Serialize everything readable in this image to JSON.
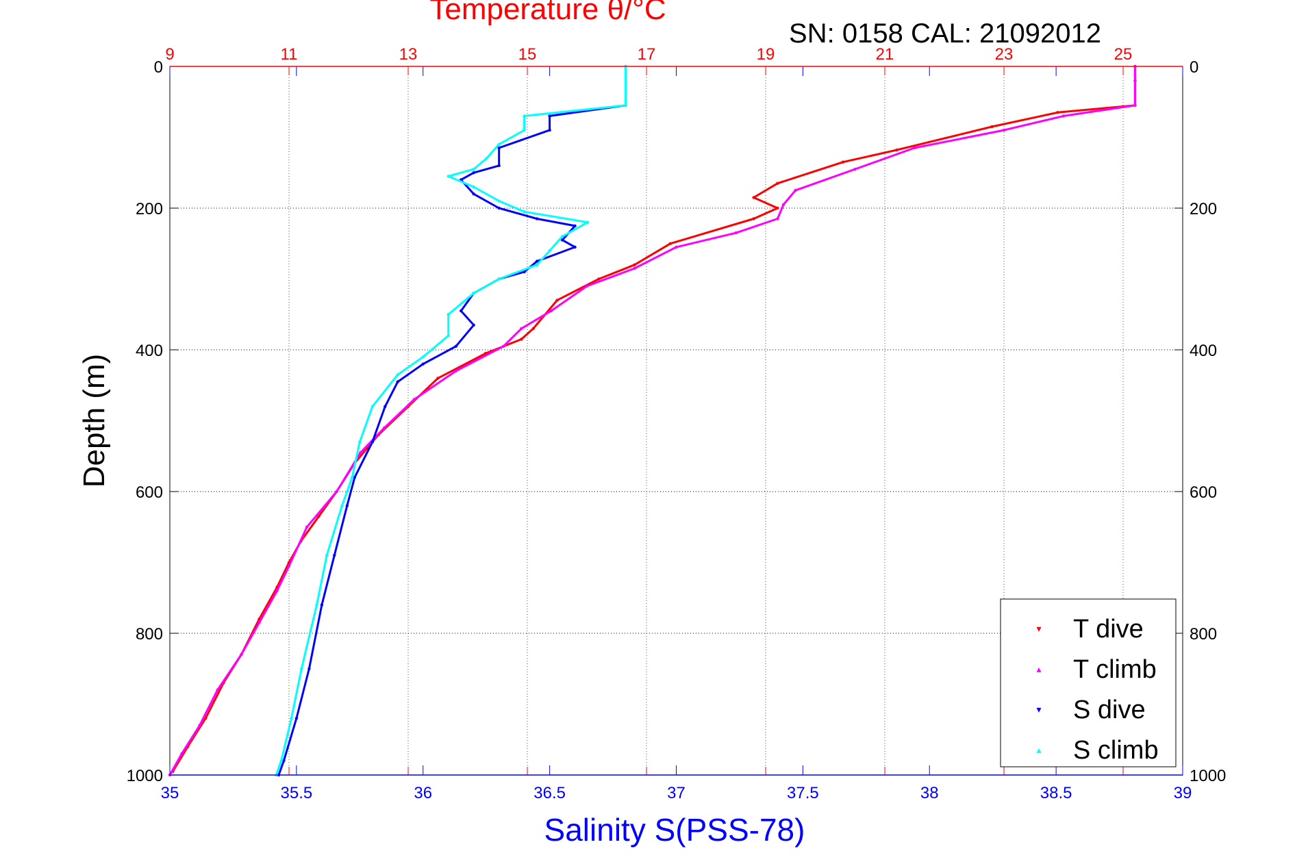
{
  "chart_data": {
    "type": "scatter",
    "top_axis": {
      "label": "Temperature θ/°C",
      "range": [
        9,
        26
      ],
      "ticks": [
        "9",
        "11",
        "13",
        "15",
        "17",
        "19",
        "21",
        "23",
        "25"
      ],
      "color": "#ff0000"
    },
    "bottom_axis": {
      "label": "Salinity S(PSS-78)",
      "range": [
        35,
        39
      ],
      "ticks": [
        "35",
        "35.5",
        "36",
        "36.5",
        "37",
        "37.5",
        "38",
        "38.5",
        "39"
      ],
      "color": "#0000ff"
    },
    "y_axis": {
      "label": "Depth (m)",
      "range": [
        0,
        1000
      ],
      "reversed": true,
      "ticks": [
        "0",
        "200",
        "400",
        "600",
        "800",
        "1000"
      ]
    },
    "instrument_text": "SN: 0158  CAL: 21092012",
    "grid": true,
    "legend_position": "bottom-right",
    "legend": [
      {
        "label": "T dive",
        "color": "#ff0000",
        "marker": "▾"
      },
      {
        "label": "T climb",
        "color": "#ff00ff",
        "marker": "▴"
      },
      {
        "label": "S dive",
        "color": "#0000ff",
        "marker": "▾"
      },
      {
        "label": "S climb",
        "color": "#00ffff",
        "marker": "▴"
      }
    ],
    "series": [
      {
        "name": "T dive",
        "axis": "top",
        "color": "#ff0000",
        "points": [
          [
            25.2,
            0
          ],
          [
            25.2,
            20
          ],
          [
            25.2,
            55
          ],
          [
            23.9,
            65
          ],
          [
            22.8,
            85
          ],
          [
            21.2,
            118
          ],
          [
            20.3,
            135
          ],
          [
            19.2,
            165
          ],
          [
            18.8,
            185
          ],
          [
            19.2,
            200
          ],
          [
            18.8,
            215
          ],
          [
            17.4,
            250
          ],
          [
            16.8,
            280
          ],
          [
            16.2,
            300
          ],
          [
            15.5,
            330
          ],
          [
            15.1,
            370
          ],
          [
            14.9,
            385
          ],
          [
            14.3,
            405
          ],
          [
            13.5,
            440
          ],
          [
            13.0,
            480
          ],
          [
            12.5,
            520
          ],
          [
            12.1,
            560
          ],
          [
            11.8,
            600
          ],
          [
            11.5,
            635
          ],
          [
            11.2,
            670
          ],
          [
            11.0,
            700
          ],
          [
            10.8,
            735
          ],
          [
            10.5,
            780
          ],
          [
            10.2,
            830
          ],
          [
            9.9,
            870
          ],
          [
            9.6,
            920
          ],
          [
            9.3,
            960
          ],
          [
            9.05,
            995
          ]
        ]
      },
      {
        "name": "T climb",
        "axis": "top",
        "color": "#ff00ff",
        "points": [
          [
            25.2,
            0
          ],
          [
            25.2,
            55
          ],
          [
            24.0,
            70
          ],
          [
            23.0,
            90
          ],
          [
            21.5,
            115
          ],
          [
            20.5,
            145
          ],
          [
            19.5,
            175
          ],
          [
            19.3,
            195
          ],
          [
            19.2,
            215
          ],
          [
            18.5,
            235
          ],
          [
            17.5,
            255
          ],
          [
            16.8,
            285
          ],
          [
            16.0,
            310
          ],
          [
            15.4,
            345
          ],
          [
            14.9,
            370
          ],
          [
            14.6,
            395
          ],
          [
            13.8,
            430
          ],
          [
            13.1,
            470
          ],
          [
            12.6,
            510
          ],
          [
            12.2,
            545
          ],
          [
            11.8,
            600
          ],
          [
            11.3,
            650
          ],
          [
            11.0,
            705
          ],
          [
            10.8,
            740
          ],
          [
            10.5,
            785
          ],
          [
            10.2,
            830
          ],
          [
            9.8,
            880
          ],
          [
            9.5,
            930
          ],
          [
            9.2,
            970
          ],
          [
            9.0,
            1000
          ]
        ]
      },
      {
        "name": "S dive",
        "axis": "bottom",
        "color": "#0000ff",
        "points": [
          [
            36.8,
            0
          ],
          [
            36.8,
            55
          ],
          [
            36.5,
            70
          ],
          [
            36.5,
            90
          ],
          [
            36.3,
            115
          ],
          [
            36.3,
            140
          ],
          [
            36.2,
            150
          ],
          [
            36.15,
            160
          ],
          [
            36.2,
            180
          ],
          [
            36.3,
            200
          ],
          [
            36.45,
            215
          ],
          [
            36.6,
            225
          ],
          [
            36.55,
            245
          ],
          [
            36.6,
            255
          ],
          [
            36.45,
            275
          ],
          [
            36.4,
            290
          ],
          [
            36.3,
            300
          ],
          [
            36.2,
            320
          ],
          [
            36.15,
            345
          ],
          [
            36.2,
            365
          ],
          [
            36.13,
            395
          ],
          [
            36.0,
            420
          ],
          [
            35.9,
            445
          ],
          [
            35.85,
            480
          ],
          [
            35.8,
            530
          ],
          [
            35.73,
            580
          ],
          [
            35.7,
            620
          ],
          [
            35.65,
            690
          ],
          [
            35.6,
            760
          ],
          [
            35.55,
            850
          ],
          [
            35.5,
            920
          ],
          [
            35.45,
            980
          ],
          [
            35.43,
            1000
          ]
        ]
      },
      {
        "name": "S climb",
        "axis": "bottom",
        "color": "#00ffff",
        "points": [
          [
            36.8,
            0
          ],
          [
            36.8,
            55
          ],
          [
            36.4,
            70
          ],
          [
            36.4,
            90
          ],
          [
            36.3,
            110
          ],
          [
            36.25,
            130
          ],
          [
            36.2,
            145
          ],
          [
            36.1,
            155
          ],
          [
            36.2,
            170
          ],
          [
            36.3,
            190
          ],
          [
            36.4,
            205
          ],
          [
            36.65,
            220
          ],
          [
            36.55,
            240
          ],
          [
            36.5,
            260
          ],
          [
            36.45,
            280
          ],
          [
            36.3,
            300
          ],
          [
            36.2,
            320
          ],
          [
            36.1,
            350
          ],
          [
            36.1,
            380
          ],
          [
            36.0,
            410
          ],
          [
            35.9,
            435
          ],
          [
            35.8,
            480
          ],
          [
            35.75,
            530
          ],
          [
            35.72,
            580
          ],
          [
            35.68,
            620
          ],
          [
            35.62,
            690
          ],
          [
            35.58,
            760
          ],
          [
            35.52,
            850
          ],
          [
            35.48,
            920
          ],
          [
            35.44,
            980
          ],
          [
            35.42,
            1000
          ]
        ]
      }
    ]
  }
}
